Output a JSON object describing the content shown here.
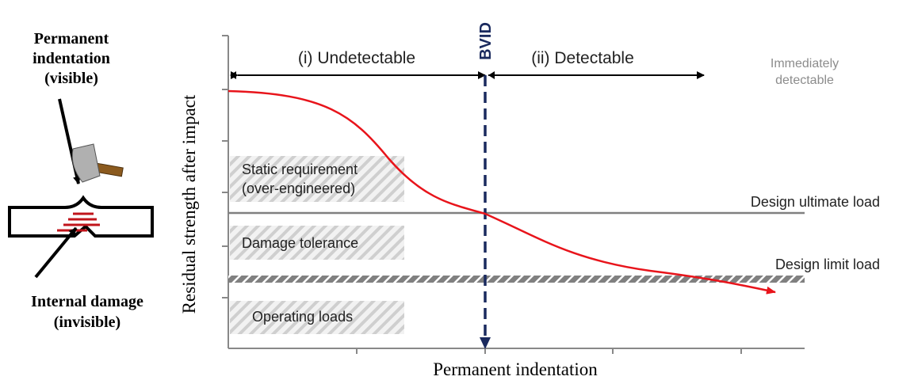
{
  "left_panel": {
    "top_label": [
      "Permanent",
      "indentation",
      "(visible)"
    ],
    "bottom_label": [
      "Internal damage",
      "(invisible)"
    ]
  },
  "axes": {
    "y_label": "Residual strength after impact",
    "x_label": "Permanent indentation"
  },
  "regions": {
    "undetectable": "(i) Undetectable",
    "detectable": "(ii) Detectable",
    "immediately_detectable": [
      "Immediately",
      "detectable"
    ]
  },
  "threshold": "BVID",
  "zones": {
    "static": [
      "Static requirement",
      "(over-engineered)"
    ],
    "damage_tolerance": "Damage tolerance",
    "operating": "Operating loads"
  },
  "load_lines": {
    "ultimate": "Design ultimate load",
    "limit": "Design limit load"
  }
}
